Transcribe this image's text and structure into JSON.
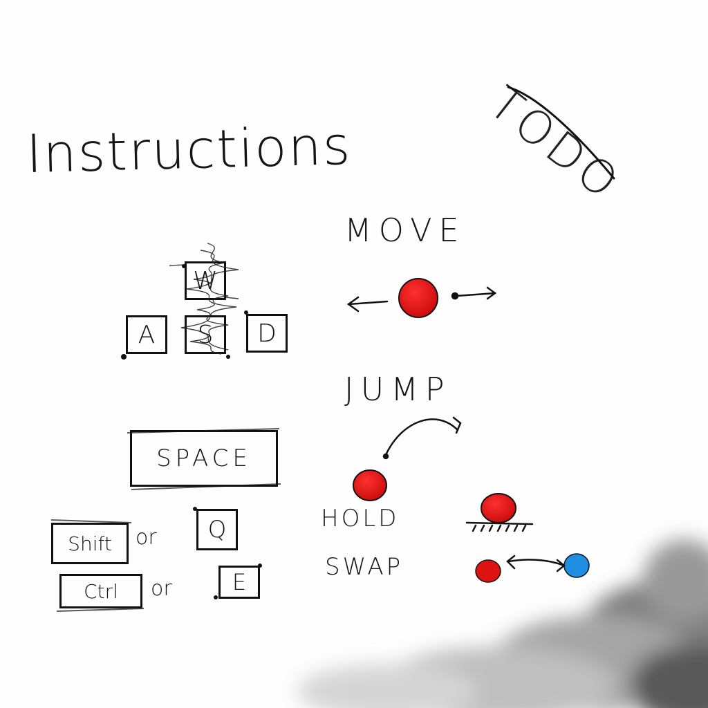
{
  "title": "Instructions",
  "todo_label": "TODO",
  "keys": {
    "w": "W",
    "a": "A",
    "s": "S",
    "d": "D",
    "space": "SPACE",
    "shift": "Shift",
    "q": "Q",
    "ctrl": "Ctrl",
    "e": "E"
  },
  "or_label": "or",
  "actions": {
    "move": "MOVE",
    "jump": "JUMP",
    "hold": "HOLD",
    "swap": "SWAP"
  },
  "colors": {
    "ball_red": "#e01313",
    "ball_blue": "#1e8fe0",
    "ink": "#111111"
  },
  "icons": {
    "left_arrow": "left-arrow-icon",
    "right_arrow": "right-arrow-icon",
    "jump_arc": "jump-arc-icon",
    "swap_arrow": "swap-arrow-icon",
    "smoke": "smoke-cloud"
  }
}
